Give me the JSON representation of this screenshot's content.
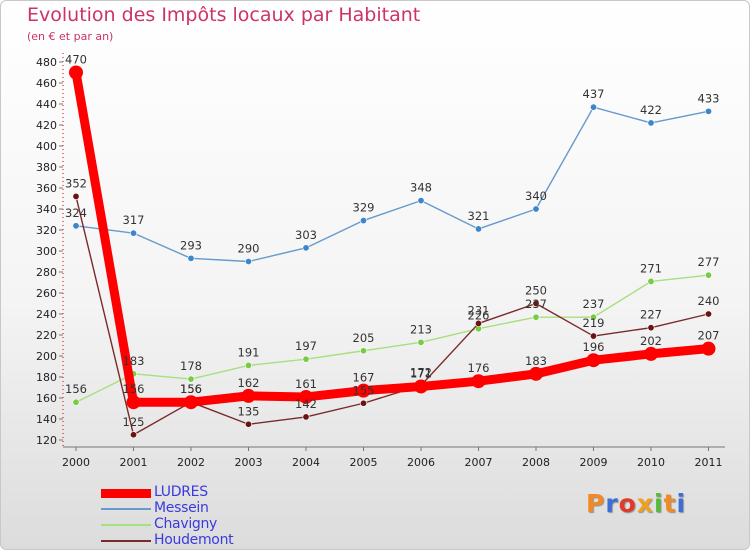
{
  "header": {
    "title": "Evolution des Impôts locaux par Habitant",
    "subtitle": "(en € et par an)"
  },
  "brand": {
    "text": "Proxiti",
    "colors": [
      "#f08a24",
      "#3a6fd8",
      "#e03a2a",
      "#f0a020",
      "#58b83a",
      "#f08a24",
      "#3a6fd8"
    ]
  },
  "chart_data": {
    "type": "line",
    "title": "Evolution des Impôts locaux par Habitant",
    "subtitle": "(en € et par an)",
    "xlabel": "",
    "ylabel": "",
    "categories": [
      "2000",
      "2001",
      "2002",
      "2003",
      "2004",
      "2005",
      "2006",
      "2007",
      "2008",
      "2009",
      "2010",
      "2011"
    ],
    "y_ticks": [
      120,
      140,
      160,
      180,
      200,
      220,
      240,
      260,
      280,
      300,
      320,
      340,
      360,
      380,
      400,
      420,
      440,
      460,
      480
    ],
    "ylim": [
      120,
      480
    ],
    "grid": false,
    "legend_position": "bottom-left",
    "series": [
      {
        "name": "LUDRES",
        "color": "#ff0000",
        "marker_color": "#ff0000",
        "emphasis": true,
        "values": [
          470,
          156,
          156,
          162,
          161,
          167,
          171,
          176,
          183,
          196,
          202,
          207
        ]
      },
      {
        "name": "Messein",
        "color": "#6699cc",
        "marker_color": "#3d86cc",
        "emphasis": false,
        "values": [
          324,
          317,
          293,
          290,
          303,
          329,
          348,
          321,
          340,
          437,
          422,
          433
        ]
      },
      {
        "name": "Chavigny",
        "color": "#a6e07e",
        "marker_color": "#77cc44",
        "emphasis": false,
        "values": [
          156,
          183,
          178,
          191,
          197,
          205,
          213,
          226,
          237,
          237,
          271,
          277
        ]
      },
      {
        "name": "Houdemont",
        "color": "#7a2a2a",
        "marker_color": "#6b1212",
        "emphasis": false,
        "values": [
          352,
          125,
          156,
          135,
          142,
          155,
          172,
          231,
          250,
          219,
          227,
          240
        ]
      }
    ]
  }
}
